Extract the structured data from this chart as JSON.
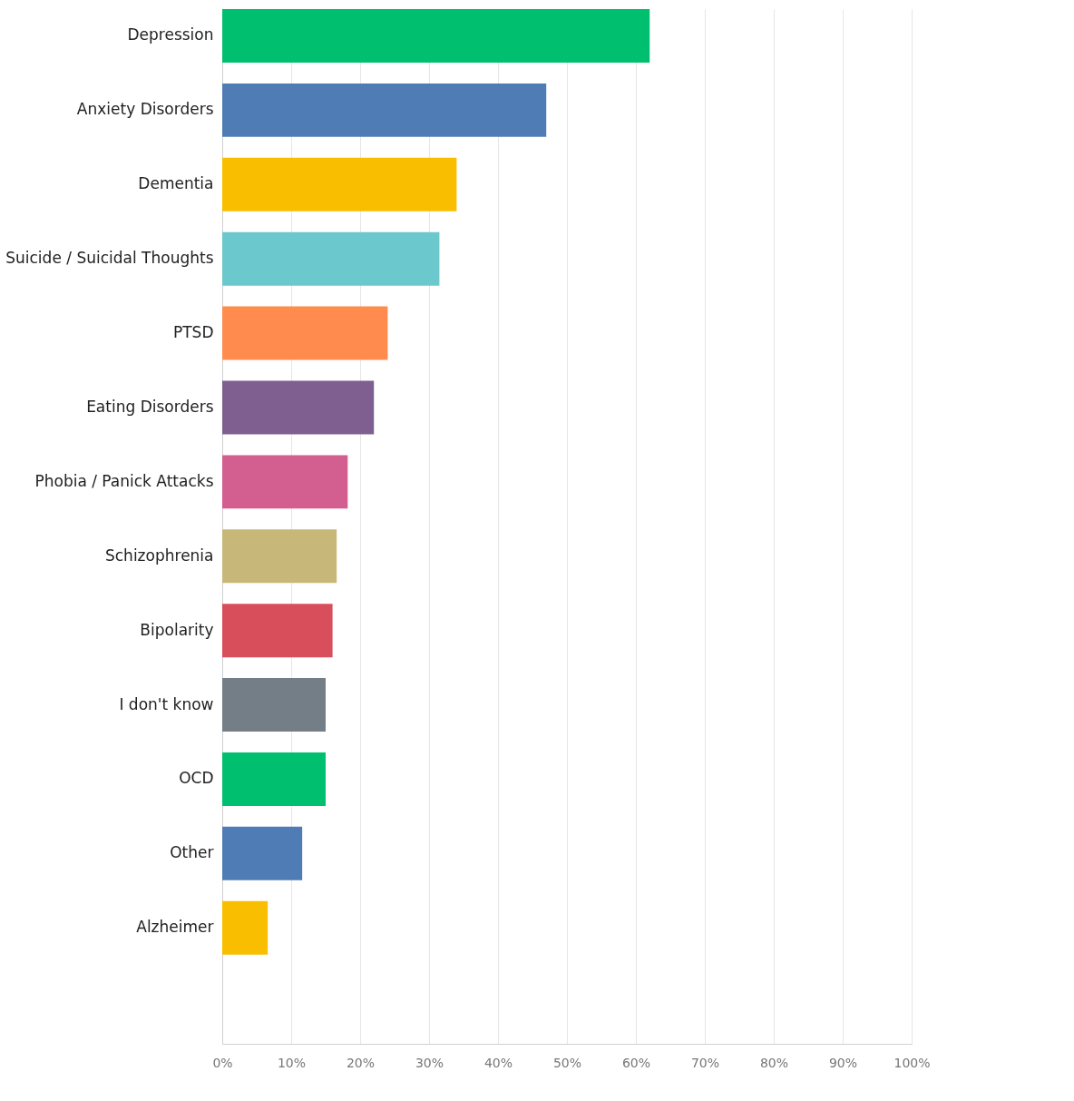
{
  "chart_data": {
    "type": "bar",
    "orientation": "horizontal",
    "categories": [
      "Depression",
      "Anxiety Disorders",
      "Dementia",
      "Suicide / Suicidal Thoughts",
      "PTSD",
      "Eating Disorders",
      "Phobia / Panick Attacks",
      "Schizophrenia",
      "Bipolarity",
      "I don't know",
      "OCD",
      "Other",
      "Alzheimer"
    ],
    "values": [
      62,
      47,
      34,
      31.5,
      24,
      22,
      18.2,
      16.6,
      16,
      15,
      15,
      11.6,
      6.6
    ],
    "colors": [
      "#00bf6f",
      "#507cb6",
      "#f9be00",
      "#6bc8cd",
      "#ff8b4f",
      "#7f5f90",
      "#d25f90",
      "#c7b879",
      "#d84e5b",
      "#747e87",
      "#00bf6f",
      "#507cb6",
      "#f9be00"
    ],
    "xlim": [
      0,
      100
    ],
    "xticks": [
      {
        "value": 0,
        "label": "0%"
      },
      {
        "value": 10,
        "label": "10%"
      },
      {
        "value": 20,
        "label": "20%"
      },
      {
        "value": 30,
        "label": "30%"
      },
      {
        "value": 40,
        "label": "40%"
      },
      {
        "value": 50,
        "label": "50%"
      },
      {
        "value": 60,
        "label": "60%"
      },
      {
        "value": 70,
        "label": "70%"
      },
      {
        "value": 80,
        "label": "80%"
      },
      {
        "value": 90,
        "label": "90%"
      },
      {
        "value": 100,
        "label": "100%"
      }
    ],
    "grid": "x"
  }
}
